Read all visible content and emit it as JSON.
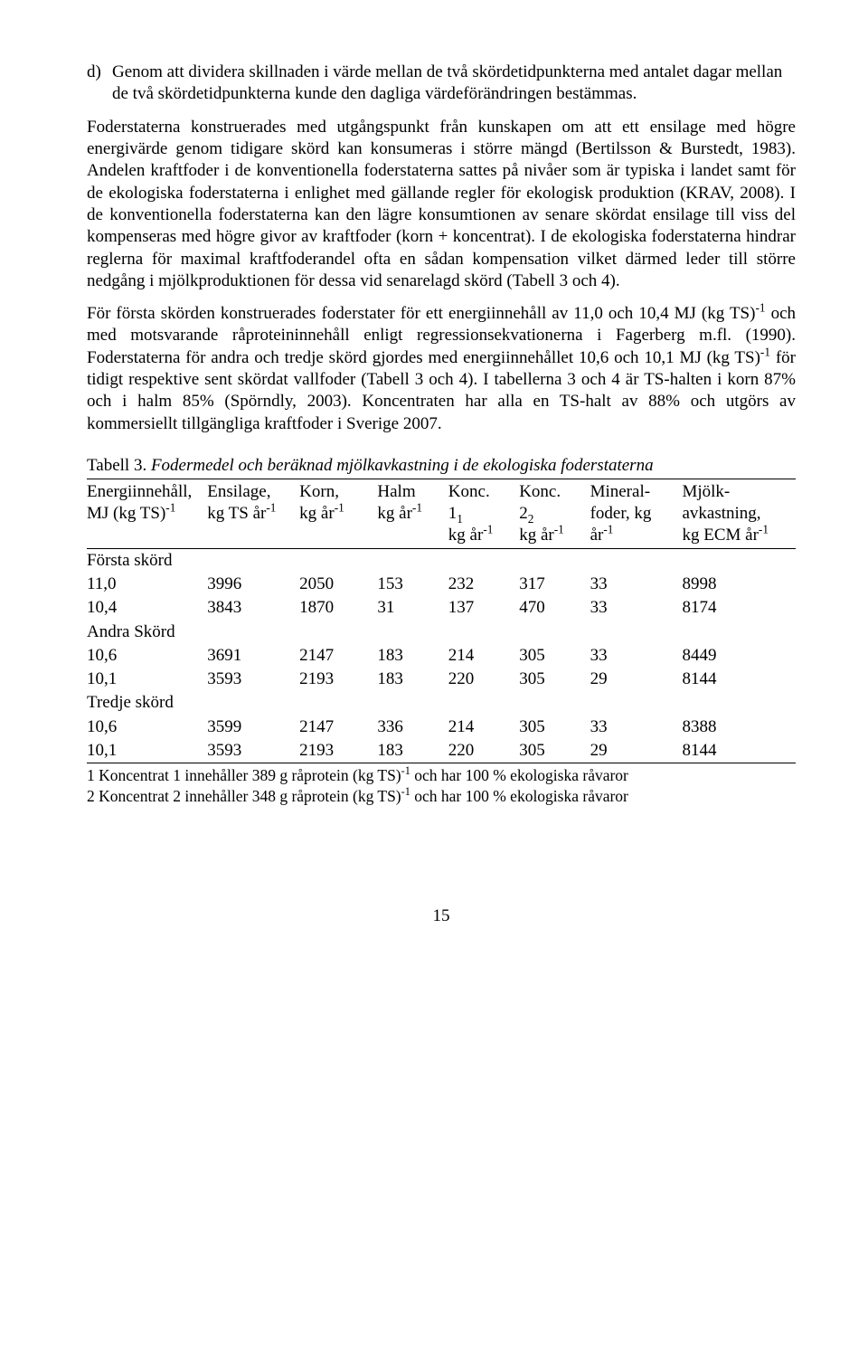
{
  "list": {
    "marker": "d)",
    "text": "Genom att dividera skillnaden i värde mellan de två skördetidpunkterna med antalet dagar mellan de två skördetidpunkterna kunde den dagliga värdeförändringen bestämmas."
  },
  "para1": "Foderstaterna konstruerades med utgångspunkt från kunskapen om att ett ensilage med högre energivärde genom tidigare skörd kan konsumeras i större mängd (Bertilsson & Burstedt, 1983). Andelen kraftfoder i de konventionella foderstaterna sattes på nivåer som är typiska i landet samt för de ekologiska foderstaterna i enlighet med gällande regler för ekologisk produktion (KRAV, 2008). I de konventionella foderstaterna kan den lägre konsumtionen av senare skördat ensilage till viss del kompenseras med högre givor av kraftfoder (korn + koncentrat). I de ekologiska foderstaterna hindrar reglerna för maximal kraftfoderandel ofta en sådan kompensation vilket därmed leder till större nedgång i mjölkproduktionen för dessa vid senarelagd skörd (Tabell 3 och 4).",
  "para2_a": "För första skörden konstruerades foderstater för ett energiinnehåll av 11,0 och 10,4 MJ (kg TS)",
  "para2_b": " och med motsvarande råproteininnehåll enligt regressionsekvationerna i Fagerberg m.fl. (1990). Foderstaterna för andra och tredje skörd gjordes med energiinnehållet 10,6 och 10,1 MJ (kg TS)",
  "para2_c": " för tidigt respektive sent skördat vallfoder (Tabell 3 och 4). I tabellerna 3 och 4 är TS-halten i  korn 87%  och i halm 85% (Spörndly, 2003). Koncentraten har alla en TS-halt av 88% och utgörs av kommersiellt tillgängliga kraftfoder i Sverige 2007.",
  "sup_neg1": "-1",
  "table": {
    "caption_lead": "Tabell 3.",
    "caption_rest": " Fodermedel och beräknad mjölkavkastning i de ekologiska foderstaterna",
    "headers": {
      "c1a": "Energiinnehåll,",
      "c1b": "MJ (kg TS)",
      "c2a": "Ensilage,",
      "c2b": "kg TS år",
      "c3a": "Korn,",
      "c3b": "kg  år",
      "c4a": "Halm",
      "c4b": "kg år",
      "c5a": "Konc.",
      "c5b": "1",
      "c5c": "kg år",
      "c6a": "Konc.",
      "c6b": "2",
      "c6c": "kg år",
      "c7a": "Mineral-",
      "c7b": "foder, kg",
      "c7c": "år",
      "c8a": "Mjölk-",
      "c8b": "avkastning,",
      "c8c": "kg ECM år",
      "sub1": "1",
      "sub2": "2"
    },
    "sections": [
      {
        "label": "Första skörd",
        "rows": [
          [
            "11,0",
            "3996",
            "2050",
            "153",
            "232",
            "317",
            "33",
            "8998"
          ],
          [
            "10,4",
            "3843",
            "1870",
            "31",
            "137",
            "470",
            "33",
            "8174"
          ]
        ]
      },
      {
        "label": "Andra Skörd",
        "rows": [
          [
            "10,6",
            "3691",
            "2147",
            "183",
            "214",
            "305",
            "33",
            "8449"
          ],
          [
            "10,1",
            "3593",
            "2193",
            "183",
            "220",
            "305",
            "29",
            "8144"
          ]
        ]
      },
      {
        "label": "Tredje skörd",
        "rows": [
          [
            "10,6",
            "3599",
            "2147",
            "336",
            "214",
            "305",
            "33",
            "8388"
          ],
          [
            "10,1",
            "3593",
            "2193",
            "183",
            "220",
            "305",
            "29",
            "8144"
          ]
        ]
      }
    ],
    "footnote1_a": "1 Koncentrat 1 innehåller 389 g råprotein (kg TS)",
    "footnote1_b": " och har 100 % ekologiska råvaror",
    "footnote2_a": "2 Koncentrat 2 innehåller 348 g råprotein (kg TS)",
    "footnote2_b": " och har 100 % ekologiska råvaror"
  },
  "page_number": "15",
  "col_widths": [
    "17%",
    "13%",
    "11%",
    "10%",
    "10%",
    "10%",
    "13%",
    "16%"
  ]
}
